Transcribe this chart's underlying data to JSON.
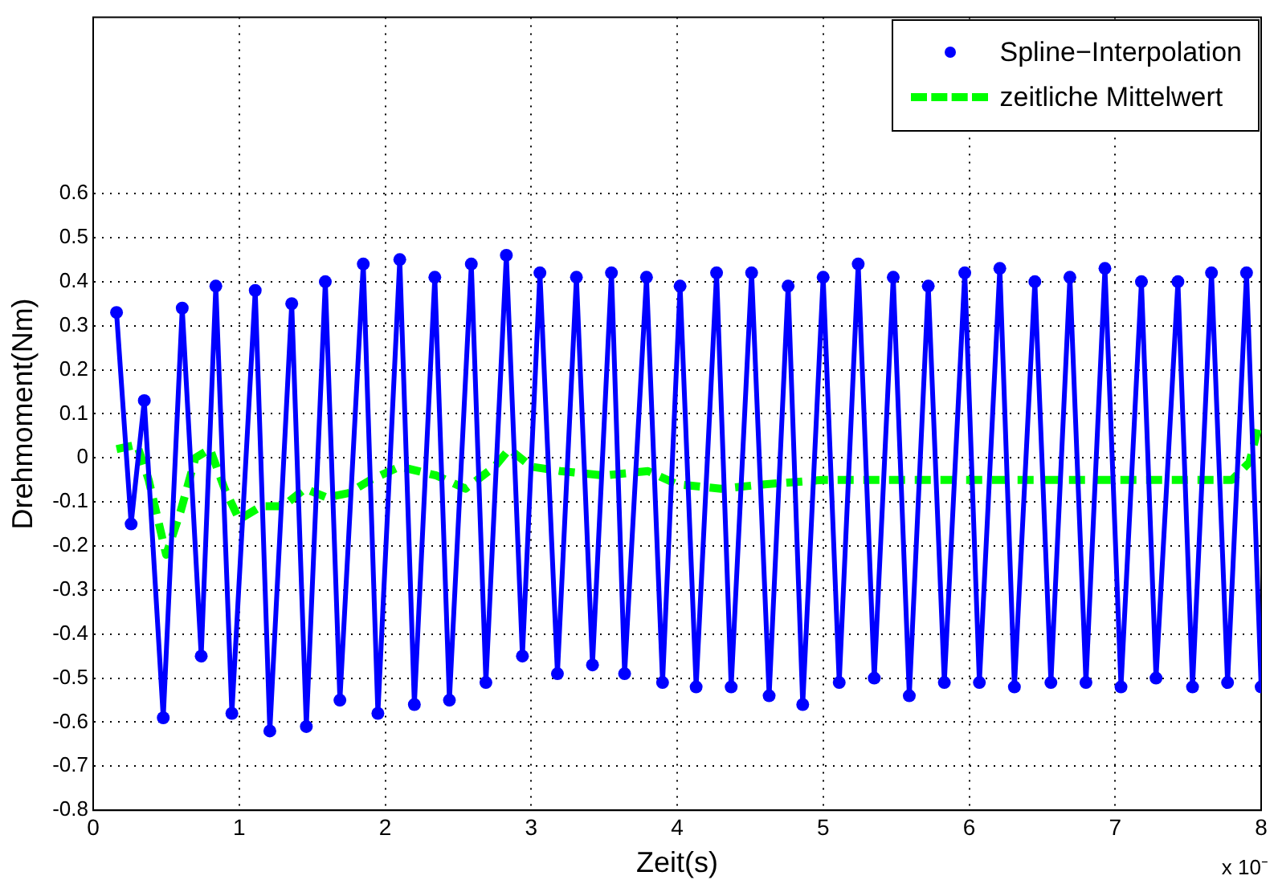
{
  "chart_data": {
    "type": "line",
    "xlabel": "Zeit(s)",
    "ylabel": "Drehmoment(Nm)",
    "xlim": [
      0,
      8
    ],
    "xticks": [
      0,
      1,
      2,
      3,
      4,
      5,
      6,
      7,
      8
    ],
    "ylim": [
      -0.8,
      1.0
    ],
    "yticks": [
      -0.8,
      -0.7,
      -0.6,
      -0.5,
      -0.4,
      -0.3,
      -0.2,
      -0.1,
      0,
      0.1,
      0.2,
      0.3,
      0.4,
      0.5,
      0.6
    ],
    "grid": true,
    "legend": "top right",
    "annotations": [
      "x 10⁻"
    ],
    "series": [
      {
        "color": "#0000ff",
        "line_style": "solid",
        "marker": "none",
        "x": [
          0.16,
          0.26,
          0.35,
          0.48,
          0.61,
          0.74,
          0.84,
          0.95,
          1.11,
          1.21,
          1.36,
          1.46,
          1.59,
          1.69,
          1.85,
          1.95,
          2.1,
          2.2,
          2.34,
          2.44,
          2.59,
          2.69,
          2.83,
          2.94,
          3.06,
          3.18,
          3.31,
          3.42,
          3.55,
          3.64,
          3.79,
          3.9,
          4.02,
          4.13,
          4.27,
          4.37,
          4.51,
          4.63,
          4.76,
          4.86,
          5.0,
          5.11,
          5.24,
          5.35,
          5.48,
          5.59,
          5.72,
          5.83,
          5.97,
          6.07,
          6.21,
          6.31,
          6.45,
          6.56,
          6.69,
          6.8,
          6.93,
          7.04,
          7.18,
          7.28,
          7.43,
          7.53,
          7.66,
          7.77,
          7.9,
          8.0
        ],
        "values": [
          0.33,
          -0.15,
          0.13,
          -0.59,
          0.34,
          -0.45,
          0.39,
          -0.58,
          0.38,
          -0.62,
          0.35,
          -0.61,
          0.4,
          -0.55,
          0.44,
          -0.58,
          0.45,
          -0.56,
          0.41,
          -0.55,
          0.44,
          -0.51,
          0.46,
          -0.45,
          0.42,
          -0.49,
          0.41,
          -0.47,
          0.42,
          -0.49,
          0.41,
          -0.51,
          0.39,
          -0.52,
          0.42,
          -0.52,
          0.42,
          -0.54,
          0.39,
          -0.56,
          0.41,
          -0.51,
          0.44,
          -0.5,
          0.41,
          -0.54,
          0.39,
          -0.51,
          0.42,
          -0.51,
          0.43,
          -0.52,
          0.4,
          -0.51,
          0.41,
          -0.51,
          0.43,
          -0.52,
          0.4,
          -0.5,
          0.4,
          -0.52,
          0.42,
          -0.51,
          0.42,
          -0.52
        ]
      },
      {
        "type": "scatter",
        "name": "Spline−Interpolation",
        "color": "#0000ff",
        "marker": "circle",
        "x": [
          0.16,
          0.26,
          0.35,
          0.48,
          0.61,
          0.74,
          0.84,
          0.95,
          1.11,
          1.21,
          1.36,
          1.46,
          1.59,
          1.69,
          1.85,
          1.95,
          2.1,
          2.2,
          2.34,
          2.44,
          2.59,
          2.69,
          2.83,
          2.94,
          3.06,
          3.18,
          3.31,
          3.42,
          3.55,
          3.64,
          3.79,
          3.9,
          4.02,
          4.13,
          4.27,
          4.37,
          4.51,
          4.63,
          4.76,
          4.86,
          5.0,
          5.11,
          5.24,
          5.35,
          5.48,
          5.59,
          5.72,
          5.83,
          5.97,
          6.07,
          6.21,
          6.31,
          6.45,
          6.56,
          6.69,
          6.8,
          6.93,
          7.04,
          7.18,
          7.28,
          7.43,
          7.53,
          7.66,
          7.77,
          7.9,
          8.0
        ],
        "values": [
          0.33,
          -0.15,
          0.13,
          -0.59,
          0.34,
          -0.45,
          0.39,
          -0.58,
          0.38,
          -0.62,
          0.35,
          -0.61,
          0.4,
          -0.55,
          0.44,
          -0.58,
          0.45,
          -0.56,
          0.41,
          -0.55,
          0.44,
          -0.51,
          0.46,
          -0.45,
          0.42,
          -0.49,
          0.41,
          -0.47,
          0.42,
          -0.49,
          0.41,
          -0.51,
          0.39,
          -0.52,
          0.42,
          -0.52,
          0.42,
          -0.54,
          0.39,
          -0.56,
          0.41,
          -0.51,
          0.44,
          -0.5,
          0.41,
          -0.54,
          0.39,
          -0.51,
          0.42,
          -0.51,
          0.43,
          -0.52,
          0.4,
          -0.51,
          0.41,
          -0.51,
          0.43,
          -0.52,
          0.4,
          -0.5,
          0.4,
          -0.52,
          0.42,
          -0.51,
          0.42,
          -0.52
        ]
      },
      {
        "name": "zeitliche Mittelwert",
        "color": "#00ff00",
        "line_style": "dashed",
        "marker": "none",
        "x": [
          0.16,
          0.3,
          0.38,
          0.5,
          0.6,
          0.7,
          0.8,
          0.9,
          1.0,
          1.15,
          1.3,
          1.45,
          1.6,
          1.75,
          1.9,
          2.1,
          2.35,
          2.55,
          2.75,
          2.85,
          3.0,
          3.2,
          3.5,
          3.8,
          4.0,
          4.3,
          4.6,
          5.0,
          5.5,
          6.0,
          6.5,
          7.0,
          7.5,
          7.8,
          7.92,
          7.98
        ],
        "values": [
          0.02,
          0.03,
          -0.05,
          -0.22,
          -0.12,
          0.0,
          0.02,
          -0.07,
          -0.14,
          -0.11,
          -0.11,
          -0.07,
          -0.09,
          -0.08,
          -0.05,
          -0.02,
          -0.04,
          -0.07,
          -0.02,
          0.02,
          -0.02,
          -0.03,
          -0.04,
          -0.03,
          -0.06,
          -0.07,
          -0.06,
          -0.05,
          -0.05,
          -0.05,
          -0.05,
          -0.05,
          -0.05,
          -0.05,
          -0.01,
          0.07
        ]
      }
    ]
  }
}
